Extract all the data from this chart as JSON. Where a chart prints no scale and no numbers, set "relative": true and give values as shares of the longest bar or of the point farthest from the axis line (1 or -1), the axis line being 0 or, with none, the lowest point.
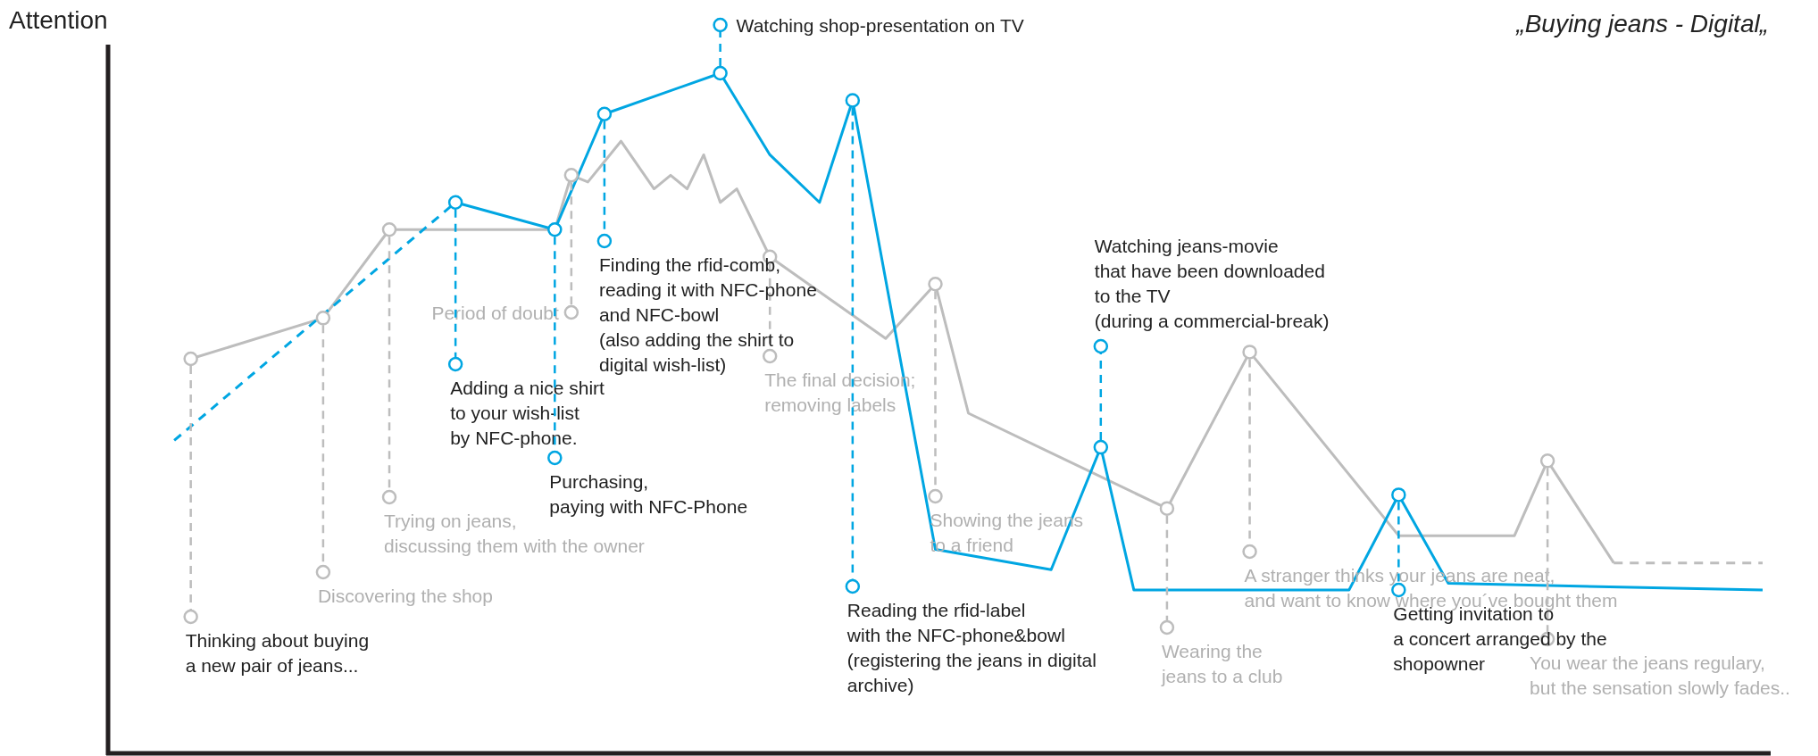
{
  "chart_data": {
    "type": "line",
    "title": "„Buying jeans - Digital„",
    "ylabel": "Attention",
    "relative": true,
    "categories": [
      null,
      null,
      null,
      null,
      null,
      null,
      null,
      null,
      null,
      null,
      null,
      null,
      null,
      null,
      null,
      null,
      null,
      null,
      null,
      null,
      null,
      null,
      null,
      null,
      null,
      null,
      null,
      null,
      null,
      null,
      null,
      null,
      null,
      null,
      null,
      null,
      null,
      null,
      null,
      null,
      null,
      null,
      null,
      null,
      null,
      null,
      null,
      null,
      null,
      null,
      null,
      null,
      null,
      null,
      null,
      null,
      null,
      null,
      null,
      null,
      null,
      null,
      null,
      null,
      null,
      null,
      null,
      null,
      null,
      null,
      null,
      null,
      null,
      null,
      null,
      null,
      null,
      null,
      null,
      null,
      null,
      null,
      null,
      null,
      null,
      null,
      null,
      null,
      null,
      null,
      null,
      null,
      null,
      null,
      null,
      null,
      null,
      null,
      null,
      null,
      null
    ],
    "series": [
      {
        "color": "#bdbdbd",
        "line_style": "solid",
        "values": [
          null,
          null,
          null,
          null,
          null,
          0.58,
          null,
          null,
          null,
          null,
          null,
          null,
          null,
          0.64,
          null,
          null,
          null,
          0.77,
          null,
          null,
          null,
          null,
          null,
          null,
          null,
          null,
          null,
          0.77,
          0.85,
          0.84,
          null,
          0.9,
          null,
          0.83,
          0.85,
          0.83,
          0.88,
          0.81,
          0.83,
          null,
          0.73,
          null,
          null,
          null,
          null,
          null,
          null,
          0.61,
          null,
          null,
          0.69,
          null,
          0.5,
          null,
          null,
          null,
          null,
          null,
          null,
          null,
          null,
          null,
          null,
          null,
          0.36,
          null,
          null,
          null,
          null,
          0.59,
          null,
          null,
          null,
          null,
          null,
          null,
          null,
          null,
          0.32,
          null,
          null,
          null,
          null,
          null,
          null,
          0.32,
          null,
          0.43,
          null,
          null,
          null,
          0.28,
          null,
          null,
          null,
          null,
          null,
          null,
          null,
          null,
          null
        ]
      },
      {
        "color": "#bdbdbd",
        "line_style": "dashed",
        "values": [
          null,
          null,
          null,
          null,
          null,
          null,
          null,
          null,
          null,
          null,
          null,
          null,
          null,
          null,
          null,
          null,
          null,
          null,
          null,
          null,
          null,
          null,
          null,
          null,
          null,
          null,
          null,
          null,
          null,
          null,
          null,
          null,
          null,
          null,
          null,
          null,
          null,
          null,
          null,
          null,
          null,
          null,
          null,
          null,
          null,
          null,
          null,
          null,
          null,
          null,
          null,
          null,
          null,
          null,
          null,
          null,
          null,
          null,
          null,
          null,
          null,
          null,
          null,
          null,
          null,
          null,
          null,
          null,
          null,
          null,
          null,
          null,
          null,
          null,
          null,
          null,
          null,
          null,
          null,
          null,
          null,
          null,
          null,
          null,
          null,
          null,
          null,
          null,
          null,
          null,
          null,
          0.28,
          null,
          null,
          null,
          null,
          null,
          null,
          null,
          null,
          0.28
        ]
      },
      {
        "color": "#00a6e2",
        "line_style": "dashed",
        "values": [
          null,
          null,
          null,
          null,
          0.46,
          null,
          null,
          null,
          null,
          null,
          null,
          null,
          null,
          null,
          null,
          null,
          null,
          null,
          null,
          null,
          null,
          0.81,
          null,
          null,
          null,
          null,
          null,
          null,
          null,
          null,
          null,
          null,
          null,
          null,
          null,
          null,
          null,
          null,
          null,
          null,
          null,
          null,
          null,
          null,
          null,
          null,
          null,
          null,
          null,
          null,
          null,
          null,
          null,
          null,
          null,
          null,
          null,
          null,
          null,
          null,
          null,
          null,
          null,
          null,
          null,
          null,
          null,
          null,
          null,
          null,
          null,
          null,
          null,
          null,
          null,
          null,
          null,
          null,
          null,
          null,
          null,
          null,
          null,
          null,
          null,
          null,
          null,
          null,
          null,
          null,
          null,
          null,
          null,
          null,
          null,
          null,
          null,
          null,
          null,
          null,
          null
        ]
      },
      {
        "color": "#00a6e2",
        "line_style": "solid",
        "values": [
          null,
          null,
          null,
          null,
          null,
          null,
          null,
          null,
          null,
          null,
          null,
          null,
          null,
          null,
          null,
          null,
          null,
          null,
          null,
          null,
          null,
          0.81,
          null,
          null,
          null,
          null,
          null,
          0.77,
          null,
          null,
          0.94,
          null,
          null,
          null,
          null,
          null,
          null,
          1.0,
          null,
          null,
          0.88,
          null,
          null,
          0.81,
          null,
          0.96,
          null,
          null,
          null,
          null,
          0.3,
          null,
          null,
          null,
          null,
          null,
          null,
          0.27,
          null,
          null,
          0.45,
          null,
          0.24,
          null,
          null,
          null,
          null,
          null,
          null,
          null,
          null,
          null,
          null,
          null,
          null,
          0.24,
          null,
          null,
          0.38,
          null,
          null,
          0.25,
          null,
          null,
          null,
          null,
          null,
          null,
          null,
          null,
          null,
          null,
          null,
          null,
          null,
          null,
          null,
          null,
          null,
          null,
          0.24
        ]
      }
    ],
    "annotations": [
      "Thinking about buying\na new pair of jeans...",
      "Discovering the shop",
      "Trying on jeans,\ndiscussing them with the owner",
      "Period of doubt",
      "The final decision;\nremoving labels",
      "Showing the jeans\nto a friend",
      "Wearing the\njeans to a club",
      "A stranger thinks your jeans are neat,\nand want to know where you´ve bought them",
      "You wear the jeans regulary,\nbut the sensation slowly fades..",
      "Adding a nice shirt\nto your wish-list\nby NFC-phone.",
      "Purchasing,\npaying with NFC-Phone",
      "Finding the rfid-comb,\nreading it with NFC-phone\nand NFC-bowl\n(also adding the shirt to\ndigital wish-list)",
      "Watching shop-presentation on TV",
      "Reading the rfid-label\nwith the NFC-phone&bowl\n(registering the jeans in digital\narchive)",
      "Watching jeans-movie\nthat have been downloaded\nto the TV\n(during a commercial-break)",
      "Getting invitation to\na concert arranged by the\nshopowner"
    ]
  }
}
